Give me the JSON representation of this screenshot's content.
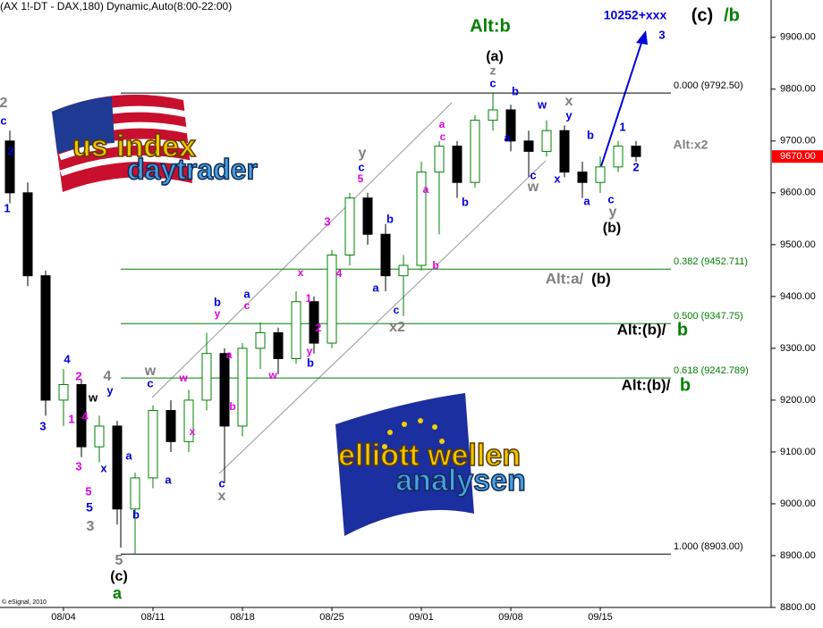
{
  "chart_data": {
    "type": "candlestick",
    "title": "(AX 1!-DT - DAX,180) Dynamic,Auto(8:00-22:00)",
    "copyright": "© eSignal, 2010",
    "ylim": [
      8800,
      9972
    ],
    "yticks": [
      {
        "value": 8800,
        "label": "8800.00"
      },
      {
        "value": 8900,
        "label": "8900.00"
      },
      {
        "value": 9000,
        "label": "9000.00"
      },
      {
        "value": 9100,
        "label": "9100.00"
      },
      {
        "value": 9200,
        "label": "9200.00"
      },
      {
        "value": 9300,
        "label": "9300.00"
      },
      {
        "value": 9400,
        "label": "9400.00"
      },
      {
        "value": 9500,
        "label": "9500.00"
      },
      {
        "value": 9600,
        "label": "9600.00"
      },
      {
        "value": 9700,
        "label": "9700.00"
      },
      {
        "value": 9800,
        "label": "9800.00"
      },
      {
        "value": 9900,
        "label": "9900.00"
      }
    ],
    "xlim": [
      -3.55,
      39.45
    ],
    "xticks": [
      {
        "value": 0,
        "label": "08/04"
      },
      {
        "value": 5,
        "label": "08/11"
      },
      {
        "value": 10,
        "label": "08/18"
      },
      {
        "value": 15,
        "label": "08/25"
      },
      {
        "value": 20,
        "label": "09/01"
      },
      {
        "value": 25,
        "label": "09/08"
      },
      {
        "value": 30,
        "label": "09/15"
      }
    ],
    "up_color": "#008000",
    "down_color": "#000000",
    "x": [
      -3,
      -2,
      -1,
      0,
      1,
      2,
      3,
      4,
      5,
      6,
      7,
      8,
      9,
      10,
      11,
      12,
      13,
      14,
      15,
      16,
      17,
      18,
      19,
      20,
      21,
      22,
      23,
      24,
      25,
      26,
      27,
      28,
      29,
      30,
      31,
      32
    ],
    "open": [
      9700,
      9600,
      9440,
      9200,
      9230,
      9110,
      9150,
      8990,
      9050,
      9180,
      9120,
      9200,
      9290,
      9150,
      9300,
      9330,
      9280,
      9390,
      9310,
      9480,
      9590,
      9520,
      9440,
      9460,
      9640,
      9690,
      9620,
      9740,
      9760,
      9700,
      9680,
      9720,
      9640,
      9620,
      9650,
      9690
    ],
    "high": [
      9720,
      9620,
      9450,
      9260,
      9240,
      9170,
      9160,
      9060,
      9190,
      9200,
      9220,
      9330,
      9300,
      9310,
      9350,
      9340,
      9410,
      9400,
      9490,
      9600,
      9600,
      9540,
      9480,
      9660,
      9700,
      9700,
      9750,
      9792,
      9770,
      9720,
      9740,
      9730,
      9660,
      9670,
      9700,
      9700
    ],
    "low": [
      9580,
      9420,
      9170,
      9150,
      9090,
      9080,
      8960,
      8903,
      9030,
      9100,
      9100,
      9180,
      9040,
      9130,
      9260,
      9250,
      9270,
      9290,
      9300,
      9460,
      9500,
      9410,
      9362,
      9450,
      9520,
      9590,
      9610,
      9720,
      9680,
      9630,
      9670,
      9630,
      9590,
      9600,
      9640,
      9660
    ],
    "close": [
      9600,
      9440,
      9200,
      9230,
      9110,
      9150,
      8990,
      9050,
      9180,
      9120,
      9200,
      9290,
      9150,
      9300,
      9330,
      9280,
      9390,
      9310,
      9480,
      9590,
      9520,
      9440,
      9460,
      9640,
      9690,
      9620,
      9740,
      9760,
      9700,
      9680,
      9720,
      9640,
      9620,
      9650,
      9690,
      9670
    ],
    "last_price": {
      "value": 9670,
      "label": "9670.00",
      "color": "#ff0000"
    },
    "fib_levels": [
      {
        "value": 9792.5,
        "label": "0.000 (9792.50)",
        "color": "#000000"
      },
      {
        "value": 9452.711,
        "label": "0.382 (9452.711)",
        "color": "#008000"
      },
      {
        "value": 9347.75,
        "label": "0.500 (9347.75)",
        "color": "#008000"
      },
      {
        "value": 9242.789,
        "label": "0.618 (9242.789)",
        "color": "#008000"
      },
      {
        "value": 8903,
        "label": "1.000 (8903.00)",
        "color": "#000000"
      }
    ],
    "annotations": [
      {
        "text": "Alt:b",
        "color": "#008000"
      },
      {
        "text": "10252+xxx",
        "color": "#0000dd"
      },
      {
        "text": "3",
        "color": "#0000dd"
      },
      {
        "text": "(c)",
        "color": "#000000"
      },
      {
        "text": "/b",
        "color": "#008000"
      },
      {
        "text": "(a)",
        "color": "#000000"
      },
      {
        "text": "z",
        "color": "#808080"
      },
      {
        "text": "c",
        "color": "#0000dd"
      },
      {
        "text": "b",
        "color": "#0000dd"
      },
      {
        "text": "w",
        "color": "#0000dd"
      },
      {
        "text": "x",
        "color": "#808080"
      },
      {
        "text": "y",
        "color": "#0000dd"
      },
      {
        "text": "a",
        "color": "#0000dd"
      },
      {
        "text": "c",
        "color": "#0000dd"
      },
      {
        "text": "w",
        "color": "#808080"
      },
      {
        "text": "x",
        "color": "#0000dd"
      },
      {
        "text": "a",
        "color": "#0000dd"
      },
      {
        "text": "b",
        "color": "#0000dd"
      },
      {
        "text": "c",
        "color": "#0000dd"
      },
      {
        "text": "y",
        "color": "#808080"
      },
      {
        "text": "(b)",
        "color": "#000000"
      },
      {
        "text": "1",
        "color": "#0000dd"
      },
      {
        "text": "2",
        "color": "#0000dd"
      },
      {
        "text": "Alt:x2",
        "color": "#808080"
      },
      {
        "text": "Alt:a/",
        "color": "#808080"
      },
      {
        "text": "(b)",
        "color": "#000000"
      },
      {
        "text": "Alt:(b)/",
        "color": "#000000"
      },
      {
        "text": "b",
        "color": "#008000"
      },
      {
        "text": "Alt:(b)/",
        "color": "#000000"
      },
      {
        "text": "b",
        "color": "#008000"
      },
      {
        "text": "x2",
        "color": "#808080"
      },
      {
        "text": "c",
        "color": "#0000dd"
      },
      {
        "text": "2",
        "color": "#808080"
      },
      {
        "text": "c",
        "color": "#0000dd"
      },
      {
        "text": "2",
        "color": "#0000dd"
      },
      {
        "text": "1",
        "color": "#0000dd"
      },
      {
        "text": "4",
        "color": "#0000dd"
      },
      {
        "text": "2",
        "color": "#e000e0"
      },
      {
        "text": "y",
        "color": "#0000dd"
      },
      {
        "text": "4",
        "color": "#808080"
      },
      {
        "text": "w",
        "color": "#000000"
      },
      {
        "text": "3",
        "color": "#0000dd"
      },
      {
        "text": "1",
        "color": "#e000e0"
      },
      {
        "text": "4",
        "color": "#e000e0"
      },
      {
        "text": "3",
        "color": "#e000e0"
      },
      {
        "text": "x",
        "color": "#0000dd"
      },
      {
        "text": "5",
        "color": "#e000e0"
      },
      {
        "text": "5",
        "color": "#0000dd"
      },
      {
        "text": "3",
        "color": "#808080"
      },
      {
        "text": "b",
        "color": "#0000dd"
      },
      {
        "text": "5",
        "color": "#808080"
      },
      {
        "text": "(c)",
        "color": "#000000"
      },
      {
        "text": "a",
        "color": "#008000"
      },
      {
        "text": "w",
        "color": "#808080"
      },
      {
        "text": "c",
        "color": "#0000dd"
      },
      {
        "text": "a",
        "color": "#0000dd"
      },
      {
        "text": "a",
        "color": "#0000dd"
      },
      {
        "text": "w",
        "color": "#e000e0"
      },
      {
        "text": "x",
        "color": "#e000e0"
      },
      {
        "text": "a",
        "color": "#e000e0"
      },
      {
        "text": "b",
        "color": "#e000e0"
      },
      {
        "text": "b",
        "color": "#0000dd"
      },
      {
        "text": "y",
        "color": "#e000e0"
      },
      {
        "text": "a",
        "color": "#0000dd"
      },
      {
        "text": "c",
        "color": "#e000e0"
      },
      {
        "text": "w",
        "color": "#e000e0"
      },
      {
        "text": "x",
        "color": "#e000e0"
      },
      {
        "text": "1",
        "color": "#e000e0"
      },
      {
        "text": "2",
        "color": "#e000e0"
      },
      {
        "text": "y",
        "color": "#e000e0"
      },
      {
        "text": "b",
        "color": "#0000dd"
      },
      {
        "text": "c",
        "color": "#0000dd"
      },
      {
        "text": "x",
        "color": "#808080"
      },
      {
        "text": "3",
        "color": "#e000e0"
      },
      {
        "text": "4",
        "color": "#e000e0"
      },
      {
        "text": "5",
        "color": "#e000e0"
      },
      {
        "text": "c",
        "color": "#0000dd"
      },
      {
        "text": "y",
        "color": "#808080"
      },
      {
        "text": "b",
        "color": "#0000dd"
      },
      {
        "text": "a",
        "color": "#0000dd"
      },
      {
        "text": "b",
        "color": "#e000e0"
      },
      {
        "text": "a",
        "color": "#e000e0"
      },
      {
        "text": "b",
        "color": "#0000dd"
      },
      {
        "text": "a",
        "color": "#e000e0"
      },
      {
        "text": "c",
        "color": "#e000e0"
      }
    ],
    "logos": {
      "us_line1": "us index",
      "us_line2": "daytrader",
      "eu_line1": "elliott wellen",
      "eu_line2": "analysen"
    }
  }
}
